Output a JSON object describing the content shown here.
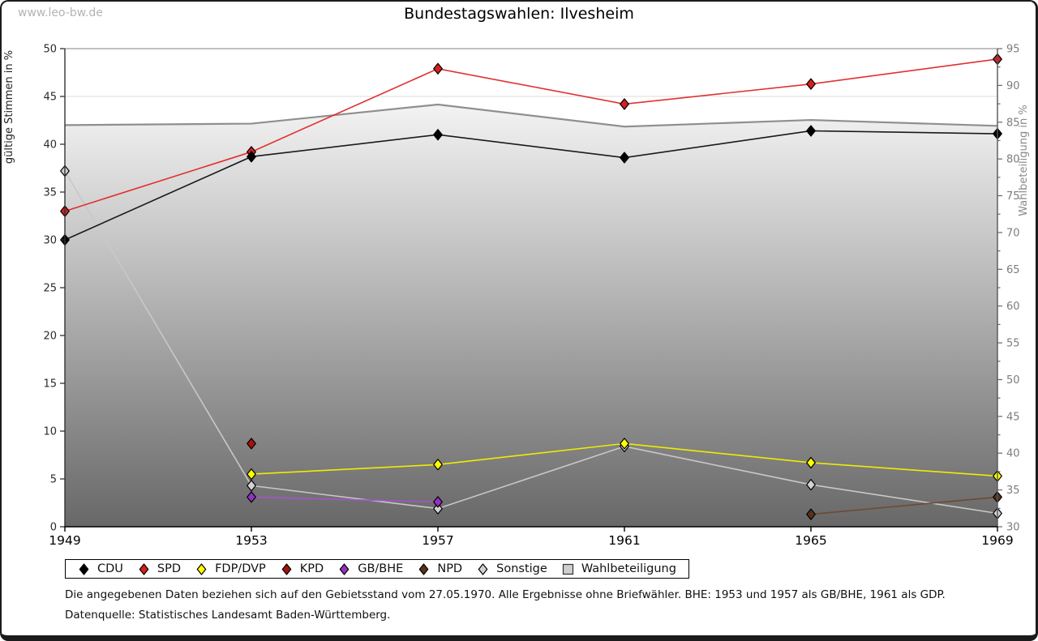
{
  "page": {
    "watermark": "www.leo-bw.de",
    "title": "Bundestagswahlen: Ilvesheim",
    "footnote": "Die angegebenen Daten beziehen sich auf den Gebietsstand vom 27.05.1970. Alle Ergebnisse ohne Briefwähler. BHE: 1953 und 1957 als GB/BHE, 1961 als GDP.",
    "source": "Datenquelle: Statistisches Landesamt Baden-Württemberg."
  },
  "chart_data": {
    "type": "line",
    "title": "Bundestagswahlen: Ilvesheim",
    "x": [
      "1949",
      "1953",
      "1957",
      "1961",
      "1965",
      "1969"
    ],
    "xlabel": "",
    "ylabel_left": "gültige Stimmen in %",
    "ylabel_right": "Wahlbeteiligung in %",
    "ylim_left": [
      0,
      50
    ],
    "ylim_right": [
      30,
      95
    ],
    "yticks_left": [
      0,
      5,
      10,
      15,
      20,
      25,
      30,
      35,
      40,
      45,
      50
    ],
    "yticks_right": [
      30,
      35,
      40,
      45,
      50,
      55,
      60,
      65,
      70,
      75,
      80,
      85,
      90,
      95
    ],
    "grid": "horizontal-left-ticks",
    "legend_position": "bottom",
    "series": [
      {
        "name": "CDU",
        "axis": "left",
        "marker": "diamond",
        "color": "#000000",
        "line_color": "#1a1a1a",
        "values": [
          30.0,
          38.7,
          41.0,
          38.6,
          41.4,
          41.1
        ]
      },
      {
        "name": "SPD",
        "axis": "left",
        "marker": "diamond",
        "color": "#d42020",
        "line_color": "#e23030",
        "values": [
          33.0,
          39.2,
          47.9,
          44.2,
          46.3,
          48.9
        ]
      },
      {
        "name": "FDP/DVP",
        "axis": "left",
        "marker": "diamond",
        "color": "#ffff00",
        "line_color": "#efec00",
        "values": [
          null,
          5.5,
          6.5,
          8.7,
          6.7,
          5.3
        ]
      },
      {
        "name": "KPD",
        "axis": "left",
        "marker": "diamond",
        "color": "#a31212",
        "line_color": "#a31212",
        "values": [
          null,
          8.7,
          null,
          null,
          null,
          null
        ]
      },
      {
        "name": "GB/BHE",
        "axis": "left",
        "marker": "diamond",
        "color": "#9230c4",
        "line_color": "#a653cf",
        "values": [
          null,
          3.1,
          2.6,
          null,
          null,
          null
        ]
      },
      {
        "name": "NPD",
        "axis": "left",
        "marker": "diamond",
        "color": "#56331c",
        "line_color": "#6e4a34",
        "values": [
          null,
          null,
          null,
          null,
          1.3,
          3.1
        ]
      },
      {
        "name": "Sonstige",
        "axis": "left",
        "marker": "diamond",
        "color": "#d2d2d2",
        "line_color": "#c8c8c8",
        "values": [
          37.2,
          4.3,
          1.9,
          8.4,
          4.4,
          1.4
        ]
      },
      {
        "name": "Wahlbeteiligung",
        "axis": "right",
        "marker": "square",
        "color": "#cfcfcf",
        "line_color": "#8f8f8f",
        "area": true,
        "values": [
          84.6,
          84.8,
          87.4,
          84.4,
          85.3,
          84.5
        ]
      }
    ]
  }
}
